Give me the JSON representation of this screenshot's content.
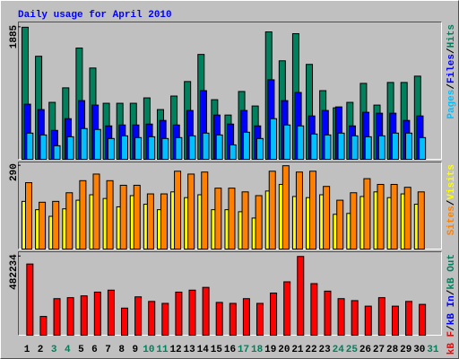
{
  "chart_data": [
    {
      "type": "bar",
      "title": "Daily usage for April 2010",
      "ylim": [
        0,
        1960
      ],
      "yticks": [
        1885
      ],
      "grid": false,
      "series": [
        {
          "name": "Hits",
          "color": "#00805c",
          "values": [
            1885,
            1471,
            813,
            1020,
            1588,
            1303,
            800,
            800,
            800,
            877,
            710,
            903,
            1110,
            1497,
            851,
            632,
            968,
            761,
            1819,
            1406,
            1793,
            1355,
            980,
            735,
            813,
            1084,
            774,
            1097,
            1097,
            1187,
            null
          ]
        },
        {
          "name": "Files",
          "color": "#0000ff",
          "values": [
            787,
            710,
            413,
            580,
            838,
            774,
            477,
            490,
            490,
            503,
            555,
            490,
            697,
            980,
            632,
            503,
            697,
            477,
            1135,
            838,
            954,
            619,
            697,
            748,
            477,
            671,
            658,
            658,
            555,
            619,
            null
          ]
        },
        {
          "name": "Pages",
          "color": "#00c0ff",
          "values": [
            374,
            348,
            194,
            322,
            439,
            426,
            297,
            335,
            310,
            322,
            297,
            310,
            335,
            374,
            348,
            206,
            387,
            297,
            580,
            490,
            477,
            361,
            348,
            374,
            335,
            322,
            335,
            374,
            374,
            310,
            null
          ]
        }
      ]
    },
    {
      "type": "bar",
      "ylim": [
        0,
        303
      ],
      "yticks": [
        290
      ],
      "grid": false,
      "series": [
        {
          "name": "Visits",
          "color": "#ffff00",
          "values": [
            166,
            137,
            114,
            140,
            170,
            189,
            176,
            147,
            186,
            156,
            137,
            199,
            179,
            189,
            137,
            137,
            130,
            108,
            202,
            225,
            183,
            179,
            189,
            121,
            124,
            183,
            199,
            179,
            192,
            156,
            null
          ]
        },
        {
          "name": "Sites",
          "color": "#ff8000",
          "values": [
            231,
            163,
            166,
            196,
            238,
            261,
            238,
            222,
            222,
            192,
            192,
            271,
            261,
            268,
            212,
            212,
            199,
            186,
            271,
            290,
            268,
            271,
            218,
            170,
            196,
            245,
            225,
            225,
            215,
            199,
            null
          ]
        }
      ]
    },
    {
      "type": "bar",
      "ylim": [
        0,
        511000
      ],
      "yticks": [
        482234
      ],
      "grid": false,
      "categories": [
        "1",
        "2",
        "3",
        "4",
        "5",
        "6",
        "7",
        "8",
        "9",
        "10",
        "11",
        "12",
        "13",
        "14",
        "15",
        "16",
        "17",
        "18",
        "19",
        "20",
        "21",
        "22",
        "23",
        "24",
        "25",
        "26",
        "27",
        "28",
        "29",
        "30",
        "31"
      ],
      "category_colors": [
        "#000000",
        "#000000",
        "#00805c",
        "#00805c",
        "#000000",
        "#000000",
        "#000000",
        "#000000",
        "#000000",
        "#00805c",
        "#00805c",
        "#000000",
        "#000000",
        "#000000",
        "#000000",
        "#000000",
        "#00805c",
        "#00805c",
        "#000000",
        "#000000",
        "#000000",
        "#000000",
        "#000000",
        "#00805c",
        "#00805c",
        "#000000",
        "#000000",
        "#000000",
        "#000000",
        "#000000",
        "#00805c"
      ],
      "series": [
        {
          "name": "kB Out",
          "color": "#00805c",
          "values": [
            null,
            null,
            null,
            null,
            null,
            null,
            null,
            null,
            null,
            null,
            null,
            null,
            null,
            null,
            null,
            null,
            null,
            null,
            null,
            null,
            null,
            null,
            null,
            null,
            null,
            null,
            null,
            null,
            null,
            null,
            null
          ]
        },
        {
          "name": "kB In",
          "color": "#0000ff",
          "values": [
            null,
            null,
            null,
            null,
            null,
            null,
            null,
            null,
            null,
            null,
            null,
            null,
            null,
            null,
            null,
            null,
            null,
            null,
            null,
            null,
            null,
            null,
            null,
            null,
            null,
            null,
            null,
            null,
            null,
            null,
            null
          ]
        },
        {
          "name": "kB F",
          "color": "#ff0000",
          "values": [
            436000,
            115000,
            224000,
            230000,
            241000,
            264000,
            276000,
            166000,
            235000,
            207000,
            195000,
            264000,
            276000,
            293000,
            201000,
            195000,
            224000,
            195000,
            258000,
            327000,
            482234,
            316000,
            270000,
            224000,
            212000,
            178000,
            230000,
            178000,
            207000,
            189000,
            null
          ]
        }
      ]
    }
  ],
  "legend_separator": "/"
}
